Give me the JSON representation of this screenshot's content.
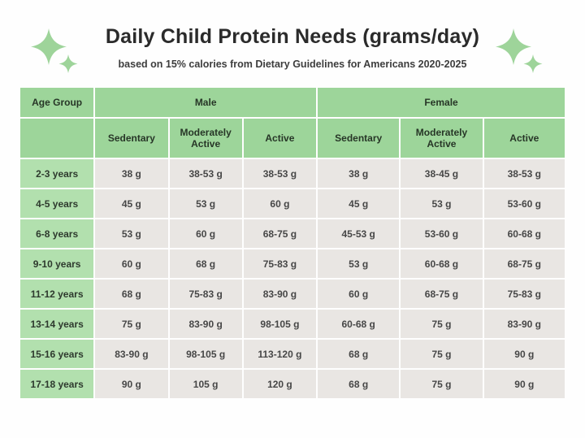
{
  "page": {
    "title": "Daily Child Protein Needs (grams/day)",
    "subtitle": "based on 15% calories from Dietary Guidelines for Americans 2020-2025"
  },
  "colors": {
    "page_bg": "#fefefe",
    "header_green": "#9dd59a",
    "label_green": "#b2e0ae",
    "cell_gray": "#e9e6e3",
    "sparkle_green": "#9ed49a"
  },
  "chart_data": {
    "type": "table",
    "title": "Daily Child Protein Needs (grams/day)",
    "subtitle": "based on 15% calories from Dietary Guidelines for Americans 2020-2025",
    "unit": "grams per day",
    "group_headers": [
      "Age Group",
      "Male",
      "Female"
    ],
    "sub_headers": [
      "Sedentary",
      "Moderately Active",
      "Active",
      "Sedentary",
      "Moderately Active",
      "Active"
    ],
    "rows": [
      {
        "age": "2-3 years",
        "values": [
          "38 g",
          "38-53 g",
          "38-53 g",
          "38 g",
          "38-45 g",
          "38-53 g"
        ]
      },
      {
        "age": "4-5 years",
        "values": [
          "45 g",
          "53 g",
          "60 g",
          "45 g",
          "53 g",
          "53-60 g"
        ]
      },
      {
        "age": "6-8 years",
        "values": [
          "53 g",
          "60 g",
          "68-75 g",
          "45-53 g",
          "53-60 g",
          "60-68 g"
        ]
      },
      {
        "age": "9-10 years",
        "values": [
          "60 g",
          "68 g",
          "75-83 g",
          "53 g",
          "60-68 g",
          "68-75 g"
        ]
      },
      {
        "age": "11-12 years",
        "values": [
          "68 g",
          "75-83 g",
          "83-90 g",
          "60 g",
          "68-75 g",
          "75-83 g"
        ]
      },
      {
        "age": "13-14 years",
        "values": [
          "75 g",
          "83-90 g",
          "98-105 g",
          "60-68 g",
          "75 g",
          "83-90 g"
        ]
      },
      {
        "age": "15-16 years",
        "values": [
          "83-90 g",
          "98-105 g",
          "113-120 g",
          "68 g",
          "75 g",
          "90 g"
        ]
      },
      {
        "age": "17-18 years",
        "values": [
          "90 g",
          "105 g",
          "120 g",
          "68 g",
          "75 g",
          "90 g"
        ]
      }
    ]
  }
}
